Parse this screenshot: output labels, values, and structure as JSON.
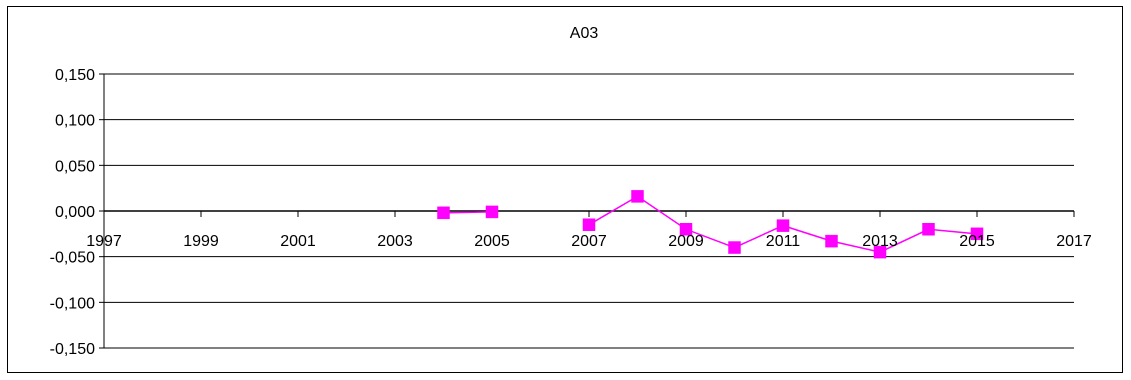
{
  "chart_data": {
    "type": "line",
    "title": "A03",
    "xlabel": "",
    "ylabel": "",
    "xlim": [
      1997,
      2017
    ],
    "ylim": [
      -0.15,
      0.15
    ],
    "x_ticks": [
      1997,
      1999,
      2001,
      2003,
      2005,
      2007,
      2009,
      2011,
      2013,
      2015,
      2017
    ],
    "x_tick_labels": [
      "1997",
      "1999",
      "2001",
      "2003",
      "2005",
      "2007",
      "2009",
      "2011",
      "2013",
      "2015",
      "2017"
    ],
    "y_ticks": [
      0.15,
      0.1,
      0.05,
      0.0,
      -0.05,
      -0.1,
      -0.15
    ],
    "y_tick_labels": [
      "0,150",
      "0,100",
      "0,050",
      "0,000",
      "-0,050",
      "-0,100",
      "-0,150"
    ],
    "grid": "horizontal",
    "legend": "none",
    "series": [
      {
        "color": "#FF00FF",
        "marker": "square",
        "segments": [
          {
            "x": [
              2004,
              2005
            ],
            "y": [
              -0.002,
              -0.001
            ]
          },
          {
            "x": [
              2007,
              2008,
              2009,
              2010,
              2011,
              2012,
              2013,
              2014,
              2015
            ],
            "y": [
              -0.015,
              0.016,
              -0.02,
              -0.04,
              -0.016,
              -0.033,
              -0.045,
              -0.02,
              -0.025
            ]
          }
        ]
      }
    ]
  }
}
